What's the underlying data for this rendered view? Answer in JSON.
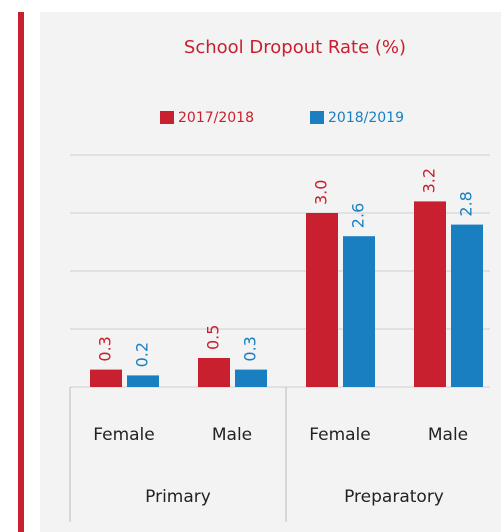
{
  "chart_data": {
    "type": "bar",
    "title": "School Dropout Rate (%)",
    "categories": [
      "Female",
      "Male",
      "Female",
      "Male"
    ],
    "groups": [
      {
        "name": "Primary",
        "span": 2
      },
      {
        "name": "Preparatory",
        "span": 2
      }
    ],
    "series": [
      {
        "name": "2017/2018",
        "color": "#c8202f",
        "values": [
          0.3,
          0.5,
          3.0,
          3.2
        ],
        "value_labels": [
          "0.3",
          "0.5",
          "3.0",
          "3.2"
        ]
      },
      {
        "name": "2018/2019",
        "color": "#1a7fc1",
        "values": [
          0.2,
          0.3,
          2.6,
          2.8
        ]
      }
    ],
    "ylim": [
      0,
      4
    ],
    "yticks": [
      0,
      1,
      2,
      3,
      4
    ],
    "grid": true
  }
}
